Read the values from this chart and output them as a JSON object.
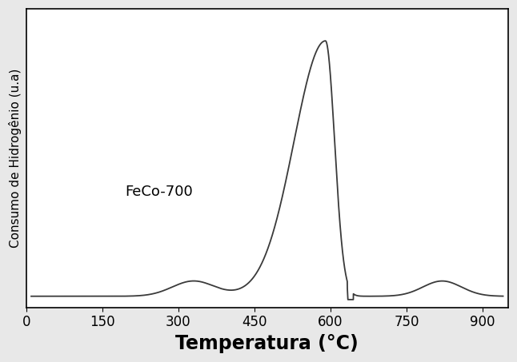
{
  "xlabel": "Temperatura (°C)",
  "ylabel": "Consumo de Hidrogênio (u.a)",
  "label": "FeCo-700",
  "xlim": [
    0,
    950
  ],
  "xticks": [
    0,
    150,
    300,
    450,
    600,
    750,
    900
  ],
  "line_color": "#3a3a3a",
  "line_width": 1.3,
  "xlabel_fontsize": 17,
  "ylabel_fontsize": 11,
  "tick_fontsize": 12,
  "label_fontsize": 13,
  "background_color": "#ffffff",
  "outer_bg": "#e8e8e8"
}
